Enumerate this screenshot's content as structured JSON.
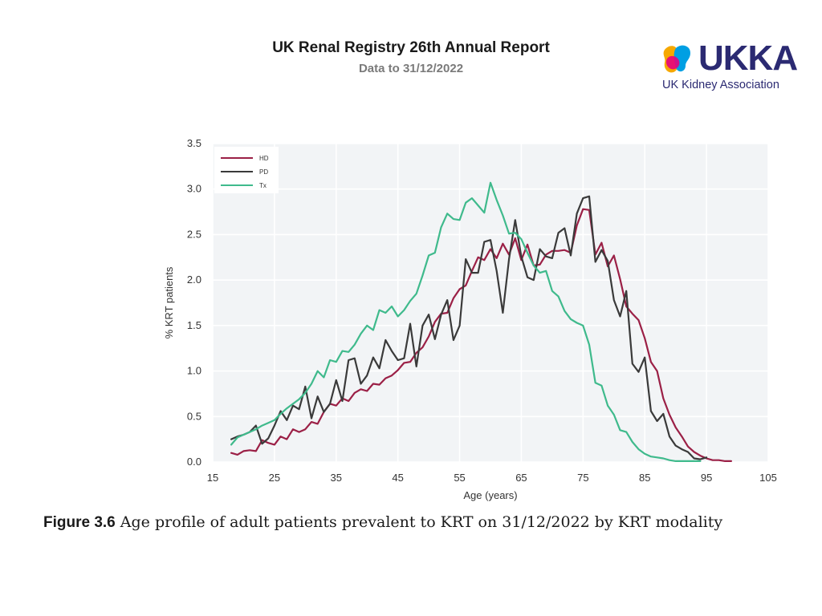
{
  "header": {
    "title": "UK Renal Registry 26th Annual Report",
    "subtitle": "Data to 31/12/2022"
  },
  "logo": {
    "word": "UKKA",
    "tagline": "UK Kidney Association",
    "colors": [
      "#e6007e",
      "#f6a800",
      "#009fe3",
      "#2b2a72"
    ]
  },
  "caption": {
    "figure_label": "Figure 3.6",
    "text": " Age profile of adult patients prevalent to KRT on 31/12/2022 by KRT modality"
  },
  "chart_data": {
    "type": "line",
    "xlabel": "Age (years)",
    "ylabel": "% KRT patients",
    "xlim": [
      15,
      105
    ],
    "ylim": [
      0,
      3.5
    ],
    "xticks": [
      15,
      25,
      35,
      45,
      55,
      65,
      75,
      85,
      95,
      105
    ],
    "yticks": [
      "0.0",
      "0.5",
      "1.0",
      "1.5",
      "2.0",
      "2.5",
      "3.0",
      "3.5"
    ],
    "grid": true,
    "legend_position": "top-left",
    "series": [
      {
        "name": "HD",
        "color": "#9b2046",
        "x": [
          18,
          19,
          20,
          21,
          22,
          23,
          24,
          25,
          26,
          27,
          28,
          29,
          30,
          31,
          32,
          33,
          34,
          35,
          36,
          37,
          38,
          39,
          40,
          41,
          42,
          43,
          44,
          45,
          46,
          47,
          48,
          49,
          50,
          51,
          52,
          53,
          54,
          55,
          56,
          57,
          58,
          59,
          60,
          61,
          62,
          63,
          64,
          65,
          66,
          67,
          68,
          69,
          70,
          71,
          72,
          73,
          74,
          75,
          76,
          77,
          78,
          79,
          80,
          81,
          82,
          83,
          84,
          85,
          86,
          87,
          88,
          89,
          90,
          91,
          92,
          93,
          94,
          95,
          96,
          97,
          98,
          99
        ],
        "y": [
          0.1,
          0.08,
          0.12,
          0.13,
          0.12,
          0.24,
          0.21,
          0.19,
          0.28,
          0.25,
          0.36,
          0.33,
          0.36,
          0.44,
          0.42,
          0.55,
          0.64,
          0.62,
          0.7,
          0.67,
          0.76,
          0.8,
          0.78,
          0.86,
          0.85,
          0.92,
          0.95,
          1.01,
          1.09,
          1.1,
          1.2,
          1.26,
          1.38,
          1.54,
          1.63,
          1.64,
          1.8,
          1.9,
          1.94,
          2.1,
          2.25,
          2.22,
          2.34,
          2.24,
          2.4,
          2.28,
          2.46,
          2.22,
          2.39,
          2.16,
          2.17,
          2.28,
          2.32,
          2.32,
          2.33,
          2.3,
          2.6,
          2.78,
          2.77,
          2.28,
          2.41,
          2.15,
          2.27,
          2.01,
          1.71,
          1.63,
          1.56,
          1.36,
          1.1,
          1.0,
          0.7,
          0.52,
          0.38,
          0.28,
          0.17,
          0.11,
          0.07,
          0.04,
          0.02,
          0.02,
          0.01,
          0.01
        ]
      },
      {
        "name": "PD",
        "color": "#3a3a3a",
        "x": [
          18,
          19,
          20,
          21,
          22,
          23,
          24,
          25,
          26,
          27,
          28,
          29,
          30,
          31,
          32,
          33,
          34,
          35,
          36,
          37,
          38,
          39,
          40,
          41,
          42,
          43,
          44,
          45,
          46,
          47,
          48,
          49,
          50,
          51,
          52,
          53,
          54,
          55,
          56,
          57,
          58,
          59,
          60,
          61,
          62,
          63,
          64,
          65,
          66,
          67,
          68,
          69,
          70,
          71,
          72,
          73,
          74,
          75,
          76,
          77,
          78,
          79,
          80,
          81,
          82,
          83,
          84,
          85,
          86,
          87,
          88,
          89,
          90,
          91,
          92,
          93,
          94,
          95
        ],
        "y": [
          0.25,
          0.28,
          0.3,
          0.33,
          0.4,
          0.2,
          0.26,
          0.4,
          0.56,
          0.46,
          0.62,
          0.58,
          0.83,
          0.48,
          0.72,
          0.55,
          0.64,
          0.9,
          0.67,
          1.12,
          1.14,
          0.86,
          0.95,
          1.15,
          1.03,
          1.34,
          1.22,
          1.12,
          1.14,
          1.52,
          1.05,
          1.5,
          1.62,
          1.35,
          1.62,
          1.78,
          1.34,
          1.5,
          2.23,
          2.08,
          2.08,
          2.42,
          2.44,
          2.1,
          1.64,
          2.23,
          2.66,
          2.26,
          2.03,
          2.0,
          2.34,
          2.26,
          2.24,
          2.52,
          2.57,
          2.27,
          2.73,
          2.9,
          2.92,
          2.2,
          2.33,
          2.21,
          1.78,
          1.6,
          1.88,
          1.08,
          0.99,
          1.15,
          0.56,
          0.45,
          0.53,
          0.28,
          0.18,
          0.14,
          0.11,
          0.04,
          0.03,
          0.05
        ]
      },
      {
        "name": "Tx",
        "color": "#3fba8c",
        "x": [
          18,
          19,
          20,
          21,
          22,
          23,
          24,
          25,
          26,
          27,
          28,
          29,
          30,
          31,
          32,
          33,
          34,
          35,
          36,
          37,
          38,
          39,
          40,
          41,
          42,
          43,
          44,
          45,
          46,
          47,
          48,
          49,
          50,
          51,
          52,
          53,
          54,
          55,
          56,
          57,
          58,
          59,
          60,
          61,
          62,
          63,
          64,
          65,
          66,
          67,
          68,
          69,
          70,
          71,
          72,
          73,
          74,
          75,
          76,
          77,
          78,
          79,
          80,
          81,
          82,
          83,
          84,
          85,
          86,
          87,
          88,
          89,
          90,
          91,
          92,
          93,
          94
        ],
        "y": [
          0.19,
          0.27,
          0.3,
          0.33,
          0.36,
          0.4,
          0.43,
          0.46,
          0.53,
          0.59,
          0.64,
          0.69,
          0.76,
          0.86,
          1.0,
          0.93,
          1.12,
          1.1,
          1.22,
          1.21,
          1.29,
          1.41,
          1.5,
          1.45,
          1.67,
          1.64,
          1.71,
          1.6,
          1.67,
          1.77,
          1.85,
          2.05,
          2.27,
          2.3,
          2.58,
          2.73,
          2.67,
          2.66,
          2.85,
          2.9,
          2.82,
          2.74,
          3.07,
          2.88,
          2.71,
          2.51,
          2.52,
          2.45,
          2.3,
          2.16,
          2.08,
          2.1,
          1.88,
          1.82,
          1.66,
          1.57,
          1.53,
          1.5,
          1.29,
          0.87,
          0.84,
          0.62,
          0.52,
          0.35,
          0.33,
          0.22,
          0.14,
          0.09,
          0.06,
          0.05,
          0.04,
          0.02,
          0.01,
          0.01,
          0.01,
          0.01,
          0.01
        ]
      }
    ]
  }
}
